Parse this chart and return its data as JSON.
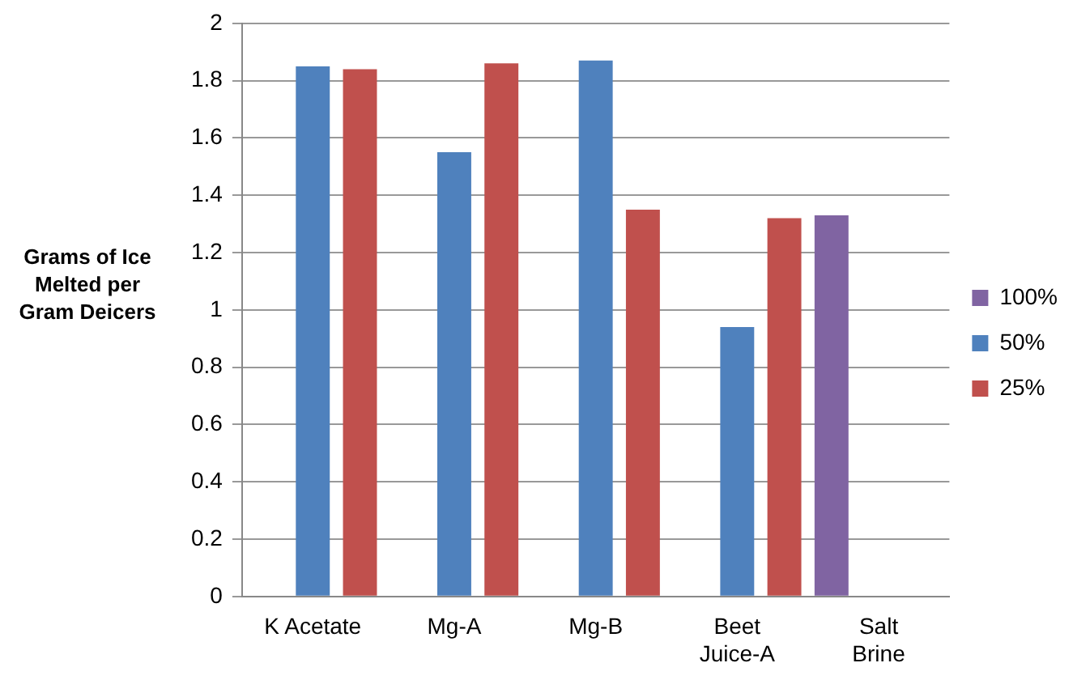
{
  "chart_data": {
    "type": "bar",
    "ylabel": "Grams of Ice Melted per Gram Deicers",
    "categories": [
      "K Acetate",
      "Mg-A",
      "Mg-B",
      "Beet Juice-A",
      "Salt Brine"
    ],
    "series": [
      {
        "name": "100%",
        "color": "#8064a2",
        "values": [
          null,
          null,
          null,
          null,
          1.33
        ]
      },
      {
        "name": "50%",
        "color": "#4f81bd",
        "values": [
          1.85,
          1.55,
          1.87,
          0.94,
          null
        ]
      },
      {
        "name": "25%",
        "color": "#c0504d",
        "values": [
          1.84,
          1.86,
          1.35,
          1.32,
          null
        ]
      }
    ],
    "ylim": [
      0,
      2
    ],
    "yticks": [
      0,
      0.2,
      0.4,
      0.6,
      0.8,
      1,
      1.2,
      1.4,
      1.6,
      1.8,
      2
    ],
    "grid": "y",
    "legend": "right"
  }
}
